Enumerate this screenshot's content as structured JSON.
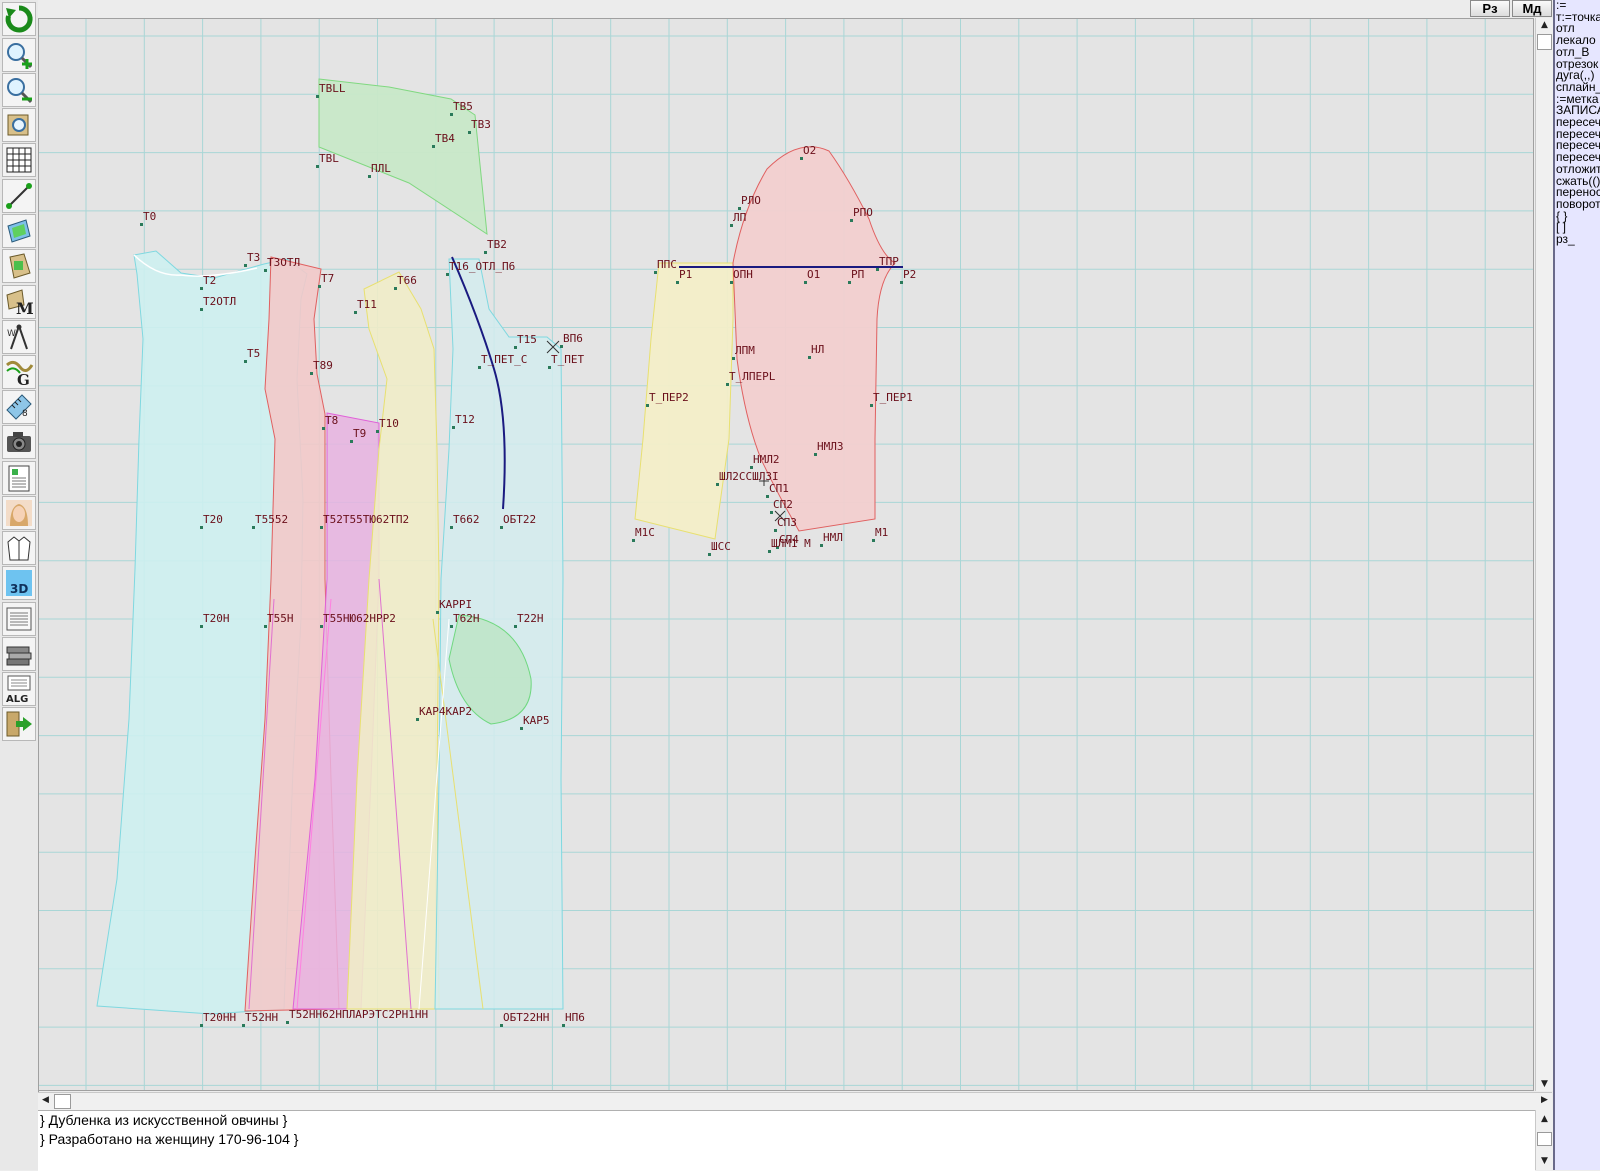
{
  "toolbar": {
    "tools": [
      {
        "name": "refresh-icon",
        "label": ""
      },
      {
        "name": "zoom-in-icon",
        "label": ""
      },
      {
        "name": "zoom-out-icon",
        "label": ""
      },
      {
        "name": "zoom-fit-icon",
        "label": ""
      },
      {
        "name": "grid-icon",
        "label": ""
      },
      {
        "name": "line-icon",
        "label": ""
      },
      {
        "name": "pattern-icon",
        "label": ""
      },
      {
        "name": "pattern-select-icon",
        "label": ""
      },
      {
        "name": "measurements-icon",
        "label": "M"
      },
      {
        "name": "compass-icon",
        "label": ""
      },
      {
        "name": "graduation-icon",
        "label": "G"
      },
      {
        "name": "ruler-icon",
        "label": ""
      },
      {
        "name": "camera-icon",
        "label": ""
      },
      {
        "name": "table-icon",
        "label": ""
      },
      {
        "name": "avatar-icon",
        "label": ""
      },
      {
        "name": "garment-icon",
        "label": ""
      },
      {
        "name": "3d-icon",
        "label": "3D"
      },
      {
        "name": "document-icon",
        "label": ""
      },
      {
        "name": "layers-icon",
        "label": ""
      },
      {
        "name": "algorithm-icon",
        "label": "ALG"
      },
      {
        "name": "exit-icon",
        "label": ""
      }
    ]
  },
  "topbar": {
    "rz_label": "Рз",
    "md_label": "Мд"
  },
  "code_panel": {
    "lines": [
      ":=",
      "т:=точка",
      "отл",
      "лекало",
      "отл_В",
      "отрезок",
      "дуга(,,)",
      "сплайн_",
      ":=метка",
      "ЗАПИСА",
      "пересеч",
      "пересеч",
      "пересеч",
      "пересеч",
      "отложит",
      "сжать(()",
      "перенос",
      "поворот",
      "{ }",
      "[ ]",
      "рз_"
    ]
  },
  "comments": {
    "line1": "} Дубленка из искусственной овчины  }",
    "line2": "} Разработано на женщину 170-96-104 }"
  },
  "canvas": {
    "labels": [
      {
        "id": "t0",
        "text": "Т0"
      },
      {
        "id": "t3",
        "text": "Т3"
      },
      {
        "id": "t3otl",
        "text": "Т3ОТЛ"
      },
      {
        "id": "t2",
        "text": "Т2"
      },
      {
        "id": "t2otl",
        "text": "Т2ОТЛ"
      },
      {
        "id": "t7",
        "text": "Т7"
      },
      {
        "id": "t66",
        "text": "Т66"
      },
      {
        "id": "t11",
        "text": "Т11"
      },
      {
        "id": "t16",
        "text": "Т16_ОТЛ_П6"
      },
      {
        "id": "t5",
        "text": "Т5"
      },
      {
        "id": "t89",
        "text": "Т89"
      },
      {
        "id": "t8",
        "text": "Т8"
      },
      {
        "id": "t9",
        "text": "Т9"
      },
      {
        "id": "t10",
        "text": "Т10"
      },
      {
        "id": "t12",
        "text": "Т12"
      },
      {
        "id": "t15",
        "text": "Т15"
      },
      {
        "id": "vp6",
        "text": "ВП6"
      },
      {
        "id": "tpetc",
        "text": "Т_ПЕТ_С"
      },
      {
        "id": "tpet",
        "text": "Т_ПЕТ"
      },
      {
        "id": "t20",
        "text": "Т20"
      },
      {
        "id": "t55",
        "text": "Т5552"
      },
      {
        "id": "tmid",
        "text": "Т52Т55ТЮ62ТП2"
      },
      {
        "id": "t662",
        "text": "Т662"
      },
      {
        "id": "t22",
        "text": "ОБТ22"
      },
      {
        "id": "t20h",
        "text": "Т20Н"
      },
      {
        "id": "t55h",
        "text": "Т55Н"
      },
      {
        "id": "tmidh",
        "text": "Т55НЮ62НРР2"
      },
      {
        "id": "t62h",
        "text": "Т62Н"
      },
      {
        "id": "t22h",
        "text": "Т22Н"
      },
      {
        "id": "kar",
        "text": "КАРРI"
      },
      {
        "id": "kap4",
        "text": "КАР4КАР2"
      },
      {
        "id": "kap5",
        "text": "КАР5"
      },
      {
        "id": "t20hh",
        "text": "Т20НН"
      },
      {
        "id": "t52hh",
        "text": "Т52НН"
      },
      {
        "id": "tbot",
        "text": "Т52НН62НПЛАРЭТС2РН1НН"
      },
      {
        "id": "t22hh",
        "text": "ОБТ22НН"
      },
      {
        "id": "hp6",
        "text": "НП6"
      },
      {
        "id": "tbll",
        "text": "ТВLL"
      },
      {
        "id": "tb5",
        "text": "ТВ5"
      },
      {
        "id": "tb3",
        "text": "ТВ3"
      },
      {
        "id": "tb4",
        "text": "ТВ4"
      },
      {
        "id": "tbl",
        "text": "ТВL"
      },
      {
        "id": "nnl",
        "text": "ПЛL"
      },
      {
        "id": "tb2",
        "text": "ТВ2"
      },
      {
        "id": "o2",
        "text": "О2"
      },
      {
        "id": "rlo",
        "text": "РЛО"
      },
      {
        "id": "rpo",
        "text": "РПО"
      },
      {
        "id": "lp",
        "text": "ЛП"
      },
      {
        "id": "pps",
        "text": "ППС"
      },
      {
        "id": "p1",
        "text": "Р1"
      },
      {
        "id": "oph",
        "text": "ОПН"
      },
      {
        "id": "o1",
        "text": "О1"
      },
      {
        "id": "rp",
        "text": "РП"
      },
      {
        "id": "tpr",
        "text": "ТПР"
      },
      {
        "id": "p2",
        "text": "Р2"
      },
      {
        "id": "lpm",
        "text": "ЛПМ"
      },
      {
        "id": "nl",
        "text": "НЛ"
      },
      {
        "id": "tper2",
        "text": "Т_ПЕР2"
      },
      {
        "id": "tlper",
        "text": "Т_ЛПЕРL"
      },
      {
        "id": "tper1",
        "text": "Т_ПЕР1"
      },
      {
        "id": "nml3",
        "text": "НМЛ3"
      },
      {
        "id": "nml2",
        "text": "НМЛ2"
      },
      {
        "id": "shl",
        "text": "ШЛ2ССШЛ3I"
      },
      {
        "id": "sp1",
        "text": "СП1"
      },
      {
        "id": "sp2",
        "text": "СП2"
      },
      {
        "id": "sp3",
        "text": "СП3"
      },
      {
        "id": "sp4",
        "text": "СП4"
      },
      {
        "id": "m1c",
        "text": "М1С"
      },
      {
        "id": "shcc",
        "text": "ШСС"
      },
      {
        "id": "shm",
        "text": "ШЛМ1 М"
      },
      {
        "id": "nml",
        "text": "НМЛ"
      },
      {
        "id": "m1",
        "text": "М1"
      }
    ]
  }
}
